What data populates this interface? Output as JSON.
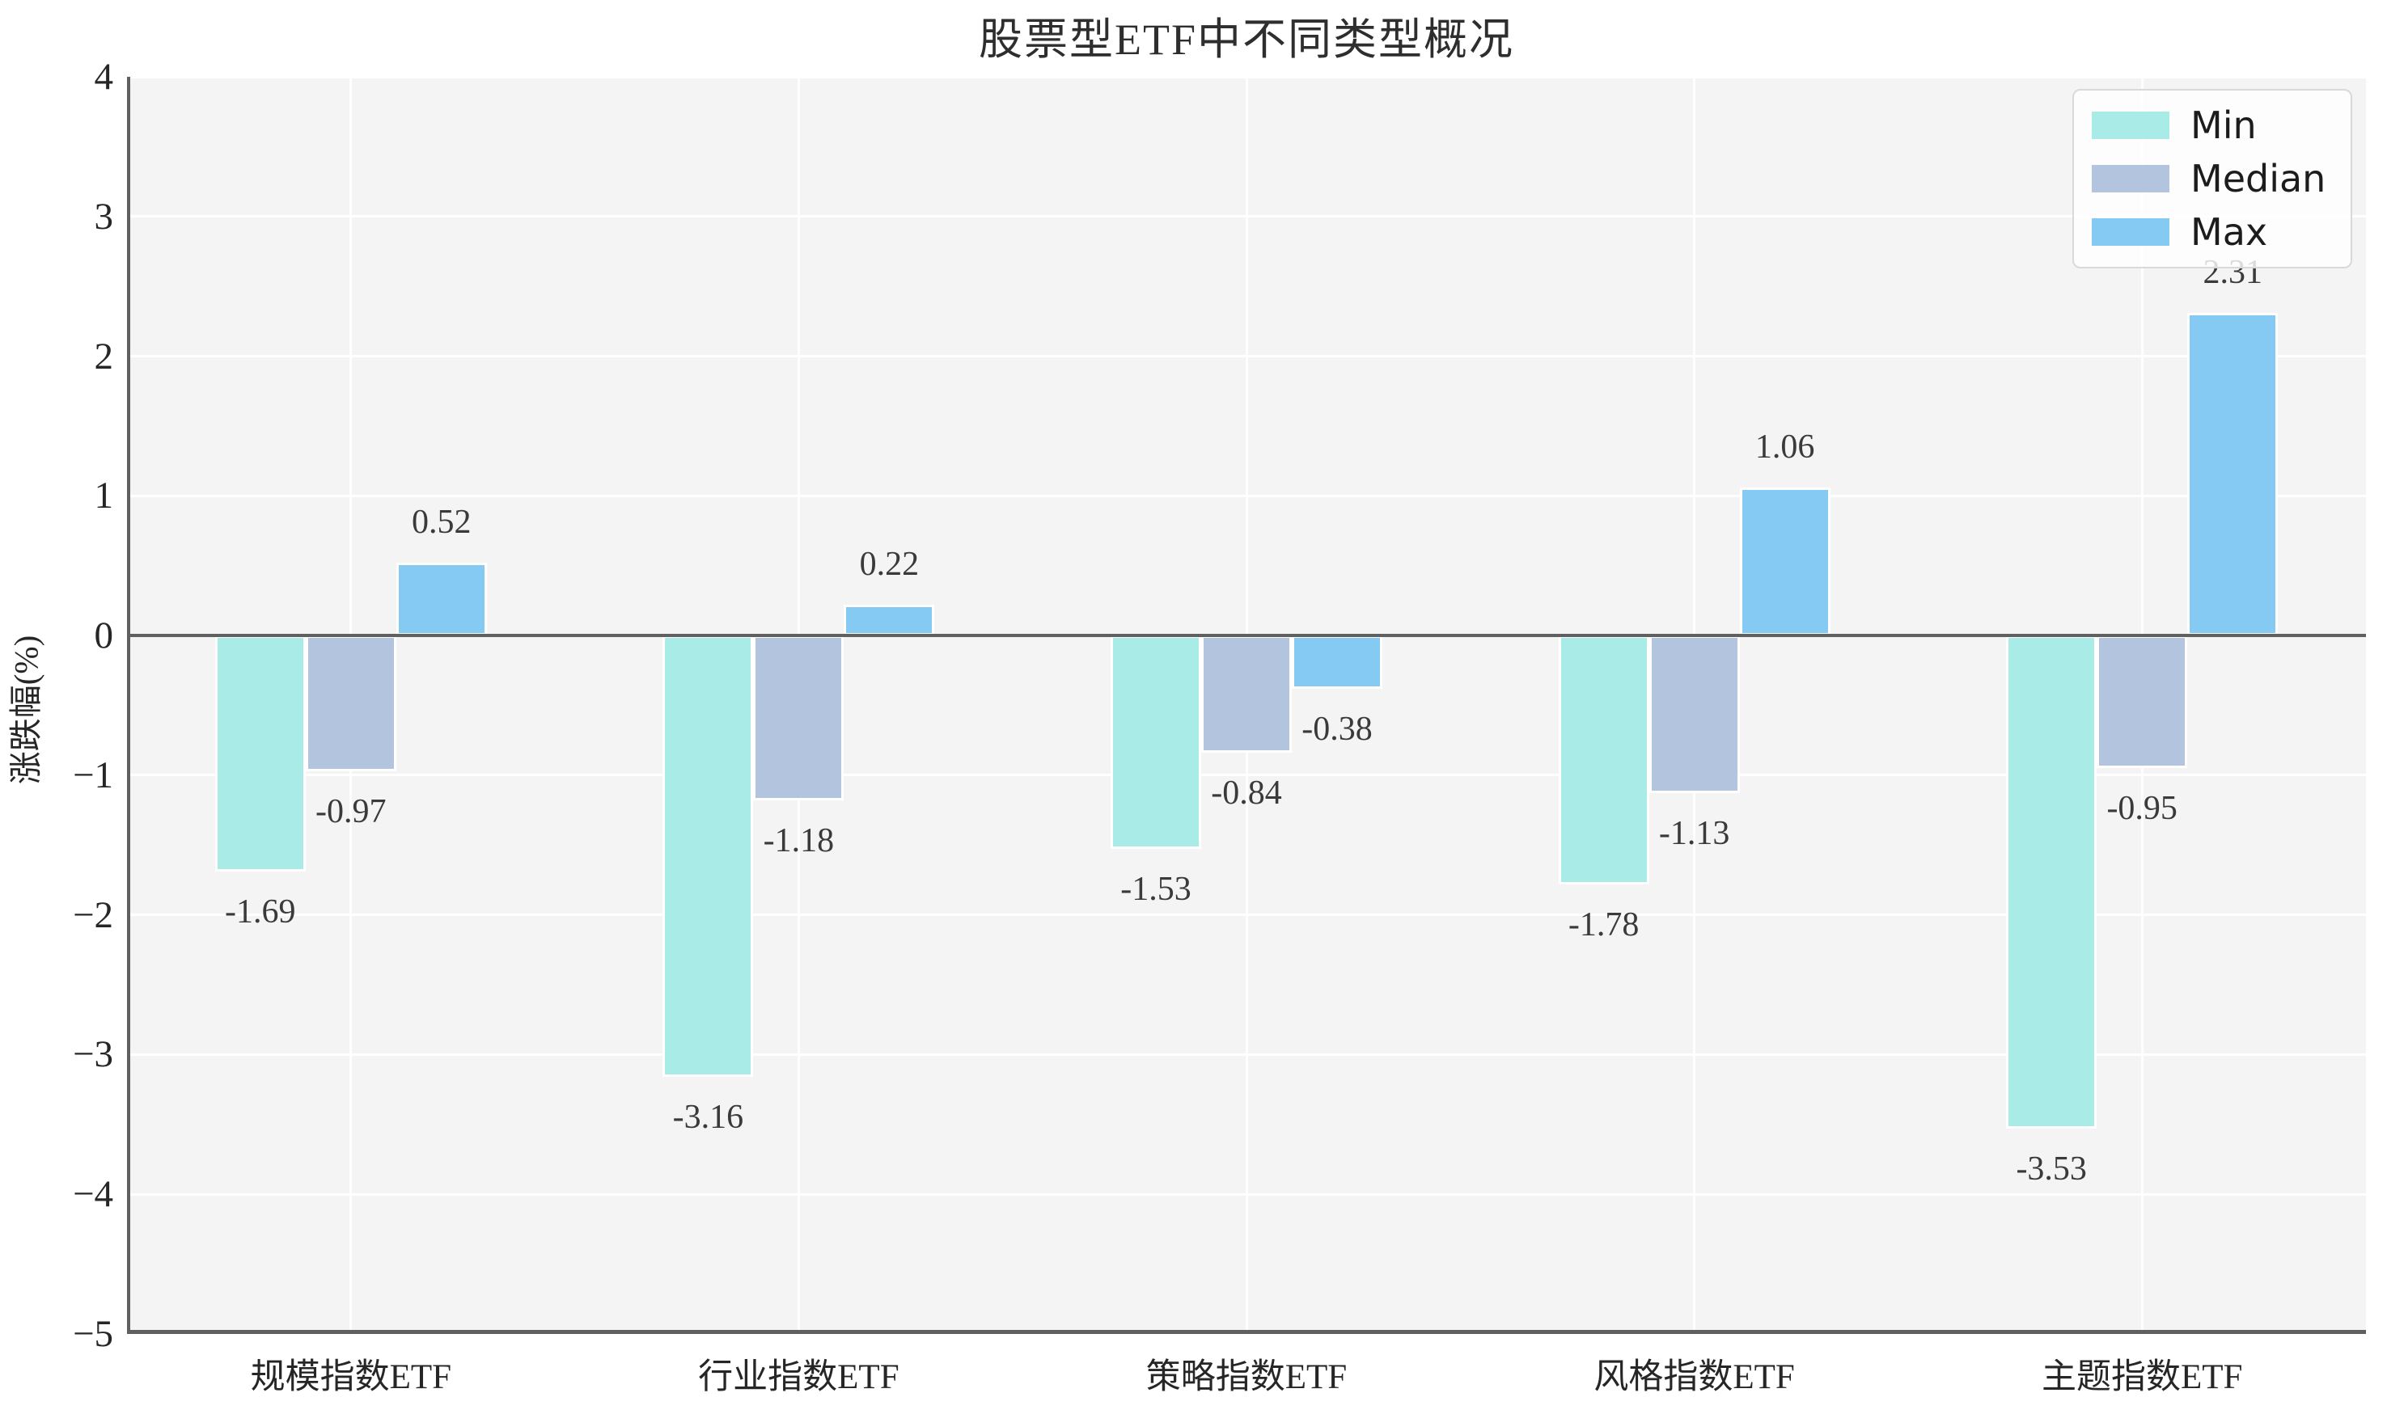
{
  "chart_data": {
    "type": "bar",
    "title": "股票型ETF中不同类型概况",
    "xlabel": "",
    "ylabel": "涨跌幅(%)",
    "categories": [
      "规模指数ETF",
      "行业指数ETF",
      "策略指数ETF",
      "风格指数ETF",
      "主题指数ETF"
    ],
    "series": [
      {
        "name": "Min",
        "color": "#a9ebe7",
        "values": [
          -1.69,
          -3.16,
          -1.53,
          -1.78,
          -3.53
        ]
      },
      {
        "name": "Median",
        "color": "#b3c5de",
        "values": [
          -0.97,
          -1.18,
          -0.84,
          -1.13,
          -0.95
        ]
      },
      {
        "name": "Max",
        "color": "#85caf2",
        "values": [
          0.52,
          0.22,
          -0.38,
          1.06,
          2.31
        ]
      }
    ],
    "bar_value_labels": [
      [
        "-1.69",
        "-3.16",
        "-1.53",
        "-1.78",
        "-3.53"
      ],
      [
        "-0.97",
        "-1.18",
        "-0.84",
        "-1.13",
        "-0.95"
      ],
      [
        "0.52",
        "0.22",
        "-0.38",
        "1.06",
        "2.31"
      ]
    ],
    "ylim": [
      -5,
      4
    ],
    "yticks": [
      4,
      3,
      2,
      1,
      0,
      -1,
      -2,
      -3,
      -4,
      -5
    ],
    "grid": true,
    "legend_position": "upper right",
    "value_label_format": "%.2f"
  },
  "style": {
    "plot_background": "#f4f4f5",
    "figure_background": "#ffffff",
    "gridline_color": "#ffffff",
    "spine_color": "#606060",
    "tick_label_color": "#262626",
    "value_label_color": "#3a3a3a",
    "title_color": "#2e2e2e"
  }
}
